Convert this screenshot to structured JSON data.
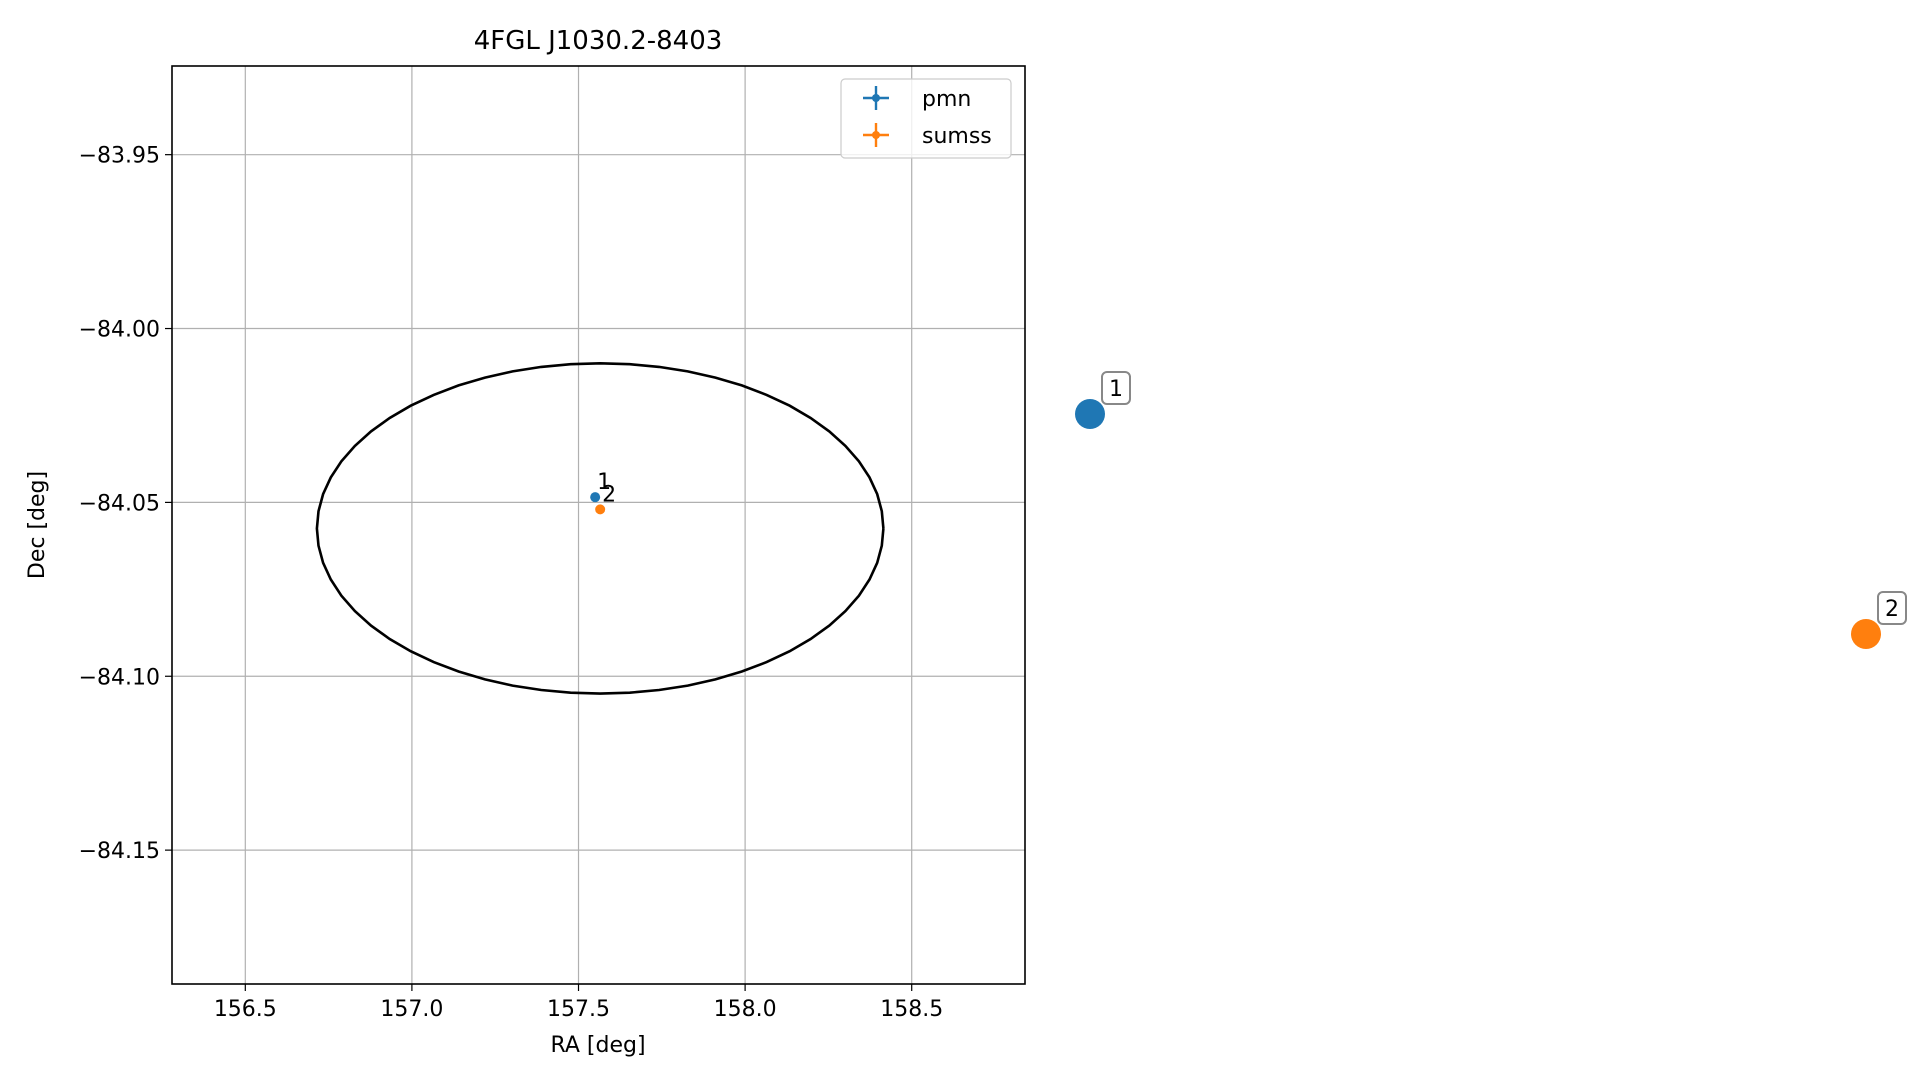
{
  "chart_data": {
    "type": "scatter",
    "title": "4FGL J1030.2-8403",
    "xlabel": "RA [deg]",
    "ylabel": "Dec [deg]",
    "xlim": [
      156.28,
      158.84
    ],
    "ylim": [
      -84.1885,
      -83.9245
    ],
    "xticks": [
      156.5,
      157.0,
      157.5,
      158.0,
      158.5
    ],
    "xtick_labels": [
      "156.5",
      "157.0",
      "157.5",
      "158.0",
      "158.5"
    ],
    "yticks": [
      -83.95,
      -84.0,
      -84.05,
      -84.1,
      -84.15
    ],
    "ytick_labels": [
      "−83.95",
      "−84.00",
      "−84.05",
      "−84.10",
      "−84.15"
    ],
    "grid": true,
    "legend_position": "top-right",
    "series": [
      {
        "name": "pmn",
        "color": "#1f77b4",
        "points": [
          {
            "x": 157.55,
            "y": -84.0485,
            "label": "1"
          }
        ]
      },
      {
        "name": "sumss",
        "color": "#ff7f0e",
        "points": [
          {
            "x": 157.565,
            "y": -84.052,
            "label": "2"
          }
        ]
      }
    ],
    "ellipse": {
      "center_x": 157.565,
      "center_y": -84.0575,
      "semi_width_ra": 0.85,
      "semi_height_dec": 0.0475,
      "color": "#000000"
    },
    "side_markers": [
      {
        "label": "1",
        "color": "#1f77b4"
      },
      {
        "label": "2",
        "color": "#ff7f0e"
      }
    ]
  }
}
